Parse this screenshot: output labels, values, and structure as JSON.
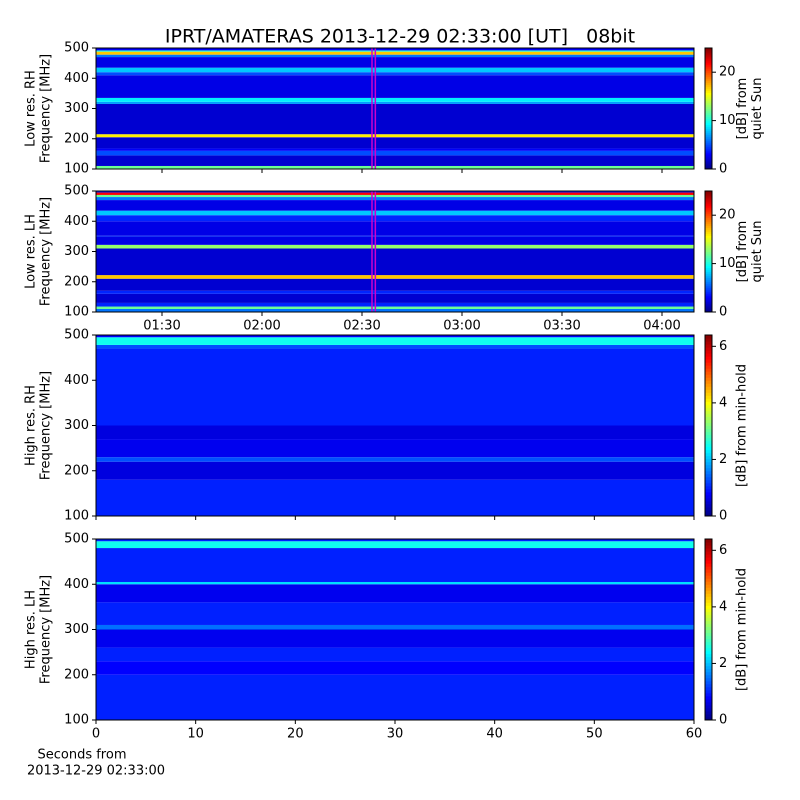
{
  "chart_data": [
    {
      "type": "heatmap",
      "title": "IPRT/AMATERAS 2013-12-29 02:33:00 [UT]   08bit",
      "ylabel": [
        "Low res. RH",
        "Frequency [MHz]"
      ],
      "ylim": [
        100,
        500
      ],
      "yticks": [
        100,
        200,
        300,
        400,
        500
      ],
      "xlim": [
        70.2,
        249.6
      ],
      "xticks": [
        {
          "value": 90,
          "label": "01:30"
        },
        {
          "value": 120,
          "label": "02:00"
        },
        {
          "value": 150,
          "label": "02:30"
        },
        {
          "value": 180,
          "label": "03:00"
        },
        {
          "value": 210,
          "label": "03:30"
        },
        {
          "value": 240,
          "label": "04:00"
        }
      ],
      "xtick_labels": false,
      "colormap": "jet",
      "y": [
        100,
        110,
        145,
        160,
        168,
        205,
        215,
        315,
        322,
        335,
        410,
        420,
        435,
        470,
        478,
        488,
        492,
        500
      ],
      "values": [
        12,
        2,
        5,
        3,
        2,
        16,
        2,
        7,
        9,
        2.5,
        5,
        8,
        2.5,
        6,
        17,
        10,
        3
      ],
      "clim": [
        0,
        25
      ],
      "cticks": [
        0,
        10,
        20
      ],
      "clabel": [
        "[dB] from",
        "quiet Sun"
      ],
      "markers": [
        153,
        154
      ],
      "marker_color": "#cc00cc"
    },
    {
      "type": "heatmap",
      "ylabel": [
        "Low res. LH",
        "Frequency [MHz]"
      ],
      "ylim": [
        100,
        500
      ],
      "yticks": [
        100,
        200,
        300,
        400,
        500
      ],
      "xlim": [
        70.2,
        249.6
      ],
      "xticks": [
        {
          "value": 90,
          "label": "01:30"
        },
        {
          "value": 120,
          "label": "02:00"
        },
        {
          "value": 150,
          "label": "02:30"
        },
        {
          "value": 180,
          "label": "03:00"
        },
        {
          "value": 210,
          "label": "03:30"
        },
        {
          "value": 240,
          "label": "04:00"
        }
      ],
      "xtick_labels": true,
      "colormap": "jet",
      "y": [
        100,
        110,
        118,
        130,
        160,
        170,
        210,
        222,
        310,
        322,
        350,
        352,
        400,
        420,
        435,
        470,
        480,
        487,
        495,
        500
      ],
      "values": [
        6,
        12,
        4,
        2,
        4,
        2,
        17,
        2,
        13,
        2.5,
        5,
        2.5,
        4,
        8,
        2.5,
        6,
        12,
        22,
        4
      ],
      "clim": [
        0,
        25
      ],
      "cticks": [
        0,
        10,
        20
      ],
      "clabel": [
        "[dB] from",
        "quiet Sun"
      ],
      "markers": [
        153,
        154
      ],
      "marker_color": "#cc00cc"
    },
    {
      "type": "heatmap",
      "ylabel": [
        "High res. RH",
        "Frequency [MHz]"
      ],
      "ylim": [
        100,
        500
      ],
      "yticks": [
        100,
        200,
        300,
        400,
        500
      ],
      "xlim": [
        0,
        60
      ],
      "xticks": [
        0,
        10,
        20,
        30,
        40,
        50,
        60
      ],
      "xtick_labels": false,
      "colormap": "jet",
      "y": [
        100,
        180,
        220,
        230,
        270,
        300,
        470,
        478,
        495,
        500
      ],
      "values": [
        1,
        0.6,
        1.3,
        0.7,
        0.6,
        1,
        1.3,
        2.5,
        0.8
      ],
      "clim": [
        0,
        6.4
      ],
      "cticks": [
        0,
        2,
        4,
        6
      ],
      "clabel": [
        "[dB] from min-hold"
      ]
    },
    {
      "type": "heatmap",
      "ylabel": [
        "High res. LH",
        "Frequency [MHz]"
      ],
      "ylim": [
        100,
        500
      ],
      "yticks": [
        100,
        200,
        300,
        400,
        500
      ],
      "xlim": [
        0,
        60
      ],
      "xticks": [
        0,
        10,
        20,
        30,
        40,
        50,
        60
      ],
      "xtick_labels": true,
      "colormap": "jet",
      "xlabel": [
        "Seconds from",
        "2013-12-29 02:33:00"
      ],
      "y": [
        100,
        200,
        230,
        260,
        300,
        310,
        360,
        400,
        405,
        480,
        495,
        500
      ],
      "values": [
        1,
        0.8,
        1,
        0.7,
        1.5,
        1,
        0.7,
        2.2,
        1,
        2.5,
        1
      ],
      "clim": [
        0,
        6.4
      ],
      "cticks": [
        0,
        2,
        4,
        6
      ],
      "clabel": [
        "[dB] from min-hold"
      ]
    }
  ]
}
